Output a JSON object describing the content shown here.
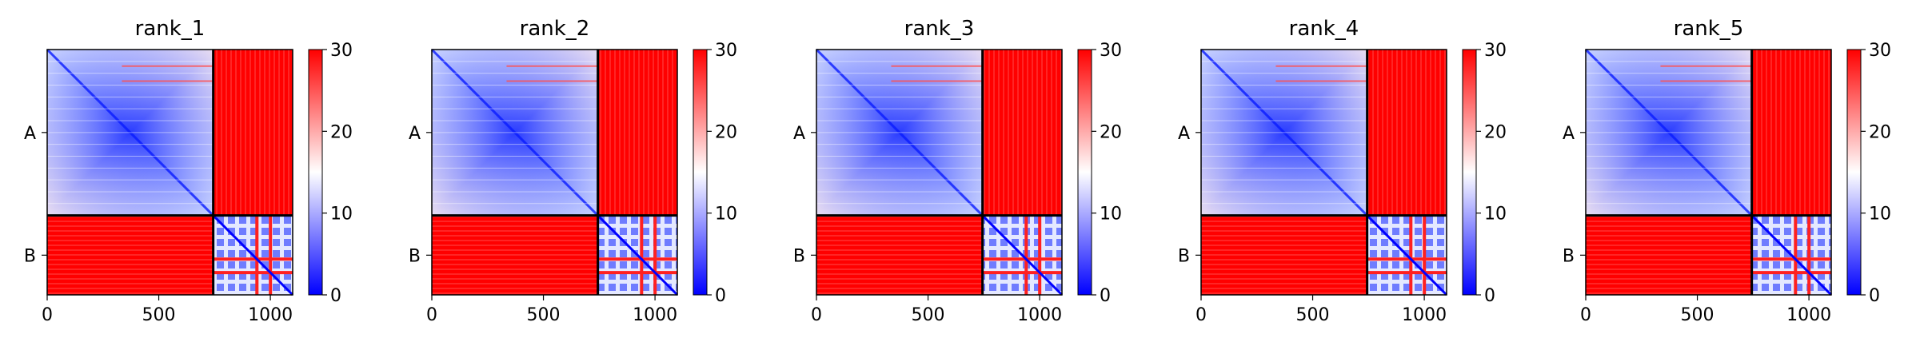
{
  "chart_data": [
    {
      "type": "heatmap",
      "title": "rank_1",
      "x_ticks": [
        0,
        500,
        1000
      ],
      "x_range": [
        0,
        1100
      ],
      "y_tick_labels": [
        "A",
        "B"
      ],
      "chains": [
        {
          "name": "A",
          "start": 0,
          "end": 744
        },
        {
          "name": "B",
          "start": 744,
          "end": 1100
        }
      ],
      "colorbar": {
        "min": 0,
        "max": 30,
        "ticks": [
          0,
          10,
          20,
          30
        ],
        "colormap": "bwr"
      }
    },
    {
      "type": "heatmap",
      "title": "rank_2",
      "x_ticks": [
        0,
        500,
        1000
      ],
      "x_range": [
        0,
        1100
      ],
      "y_tick_labels": [
        "A",
        "B"
      ],
      "chains": [
        {
          "name": "A",
          "start": 0,
          "end": 744
        },
        {
          "name": "B",
          "start": 744,
          "end": 1100
        }
      ],
      "colorbar": {
        "min": 0,
        "max": 30,
        "ticks": [
          0,
          10,
          20,
          30
        ],
        "colormap": "bwr"
      }
    },
    {
      "type": "heatmap",
      "title": "rank_3",
      "x_ticks": [
        0,
        500,
        1000
      ],
      "x_range": [
        0,
        1100
      ],
      "y_tick_labels": [
        "A",
        "B"
      ],
      "chains": [
        {
          "name": "A",
          "start": 0,
          "end": 744
        },
        {
          "name": "B",
          "start": 744,
          "end": 1100
        }
      ],
      "colorbar": {
        "min": 0,
        "max": 30,
        "ticks": [
          0,
          10,
          20,
          30
        ],
        "colormap": "bwr"
      }
    },
    {
      "type": "heatmap",
      "title": "rank_4",
      "x_ticks": [
        0,
        500,
        1000
      ],
      "x_range": [
        0,
        1100
      ],
      "y_tick_labels": [
        "A",
        "B"
      ],
      "chains": [
        {
          "name": "A",
          "start": 0,
          "end": 744
        },
        {
          "name": "B",
          "start": 744,
          "end": 1100
        }
      ],
      "colorbar": {
        "min": 0,
        "max": 30,
        "ticks": [
          0,
          10,
          20,
          30
        ],
        "colormap": "bwr"
      }
    },
    {
      "type": "heatmap",
      "title": "rank_5",
      "x_ticks": [
        0,
        500,
        1000
      ],
      "x_range": [
        0,
        1100
      ],
      "y_tick_labels": [
        "A",
        "B"
      ],
      "chains": [
        {
          "name": "A",
          "start": 0,
          "end": 744
        },
        {
          "name": "B",
          "start": 744,
          "end": 1100
        }
      ],
      "colorbar": {
        "min": 0,
        "max": 30,
        "ticks": [
          0,
          10,
          20,
          30
        ],
        "colormap": "bwr"
      }
    }
  ],
  "colors": {
    "low": "#0000ff",
    "mid": "#ffffff",
    "high": "#ff0000",
    "chain_border": "#000000"
  }
}
